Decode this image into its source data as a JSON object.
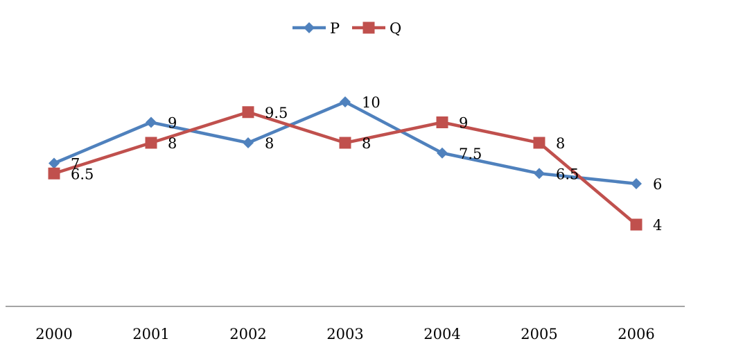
{
  "chart_data": {
    "type": "line",
    "categories": [
      "2000",
      "2001",
      "2002",
      "2003",
      "2004",
      "2005",
      "2006"
    ],
    "series": [
      {
        "name": "P",
        "color": "#4f81bd",
        "marker": "diamond",
        "values": [
          7,
          9,
          8,
          10,
          7.5,
          6.5,
          6
        ]
      },
      {
        "name": "Q",
        "color": "#c0504d",
        "marker": "square",
        "values": [
          6.5,
          8,
          9.5,
          8,
          9,
          8,
          4
        ]
      }
    ],
    "ylim": [
      0,
      12
    ],
    "grid": false,
    "y_axis_visible": false,
    "legend": "top-center",
    "data_labels": true
  }
}
